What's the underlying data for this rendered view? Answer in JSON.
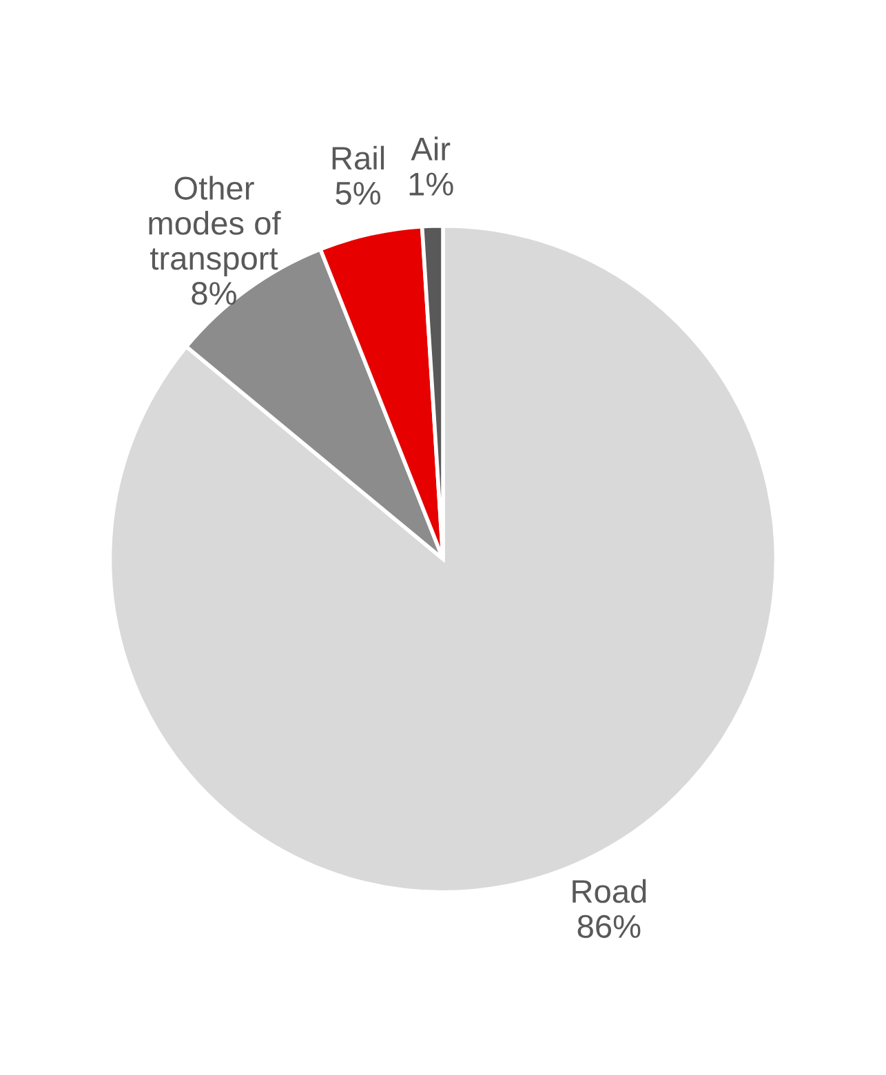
{
  "chart_data": {
    "type": "pie",
    "categories": [
      "Road",
      "Other modes of transport",
      "Rail",
      "Air"
    ],
    "values": [
      86,
      8,
      5,
      1
    ],
    "value_labels": [
      "86%",
      "8%",
      "5%",
      "1%"
    ],
    "colors": [
      "#d9d9d9",
      "#8c8c8c",
      "#e60000",
      "#595959"
    ]
  }
}
